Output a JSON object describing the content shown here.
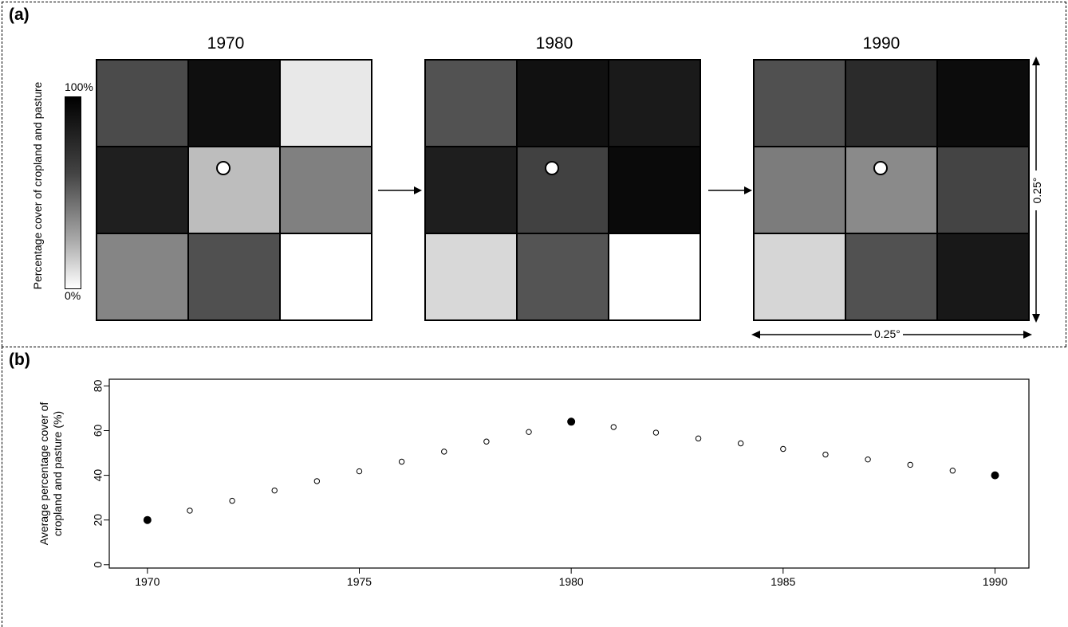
{
  "panel_a": {
    "label": "(a)",
    "colorbar": {
      "title": "Percentage cover of cropland and pasture",
      "max_label": "100%",
      "min_label": "0%"
    },
    "grids": [
      {
        "year": "1970",
        "cells": [
          "#4b4b4b",
          "#0f0f0f",
          "#e8e8e8",
          "#1f1f1f",
          "#bdbdbd",
          "#808080",
          "#858585",
          "#505050",
          "#ffffff"
        ]
      },
      {
        "year": "1980",
        "cells": [
          "#525252",
          "#111111",
          "#1a1a1a",
          "#1e1e1e",
          "#414141",
          "#0a0a0a",
          "#d8d8d8",
          "#545454",
          "#ffffff"
        ]
      },
      {
        "year": "1990",
        "cells": [
          "#505050",
          "#2b2b2b",
          "#0c0c0c",
          "#7c7c7c",
          "#8a8a8a",
          "#444444",
          "#d6d6d6",
          "#515151",
          "#181818"
        ]
      }
    ],
    "scale_vertical": "0.25°",
    "scale_horizontal": "0.25°"
  },
  "panel_b": {
    "label": "(b)",
    "chart_data": {
      "type": "scatter",
      "ylabel": "Average percentage cover of cropland and pasture (%)",
      "ylabel_lines": [
        "Average percentage cover of",
        "cropland and pasture (%)"
      ],
      "xlim": [
        1969.1,
        1990.8
      ],
      "ylim": [
        -1.5,
        83
      ],
      "xticks": [
        1970,
        1975,
        1980,
        1985,
        1990
      ],
      "yticks": [
        0,
        20,
        40,
        60,
        80
      ],
      "series": [
        {
          "marker": "filled",
          "x": [
            1970,
            1980,
            1990
          ],
          "y": [
            20,
            64,
            40
          ]
        },
        {
          "marker": "open",
          "x": [
            1971,
            1972,
            1973,
            1974,
            1975,
            1976,
            1977,
            1978,
            1979,
            1981,
            1982,
            1983,
            1984,
            1985,
            1986,
            1987,
            1988,
            1989
          ],
          "y": [
            24.2,
            28.6,
            33.2,
            37.4,
            41.8,
            46.1,
            50.6,
            55.1,
            59.4,
            61.6,
            59.1,
            56.5,
            54.3,
            51.8,
            49.3,
            47.1,
            44.7,
            42.1
          ]
        }
      ]
    }
  }
}
